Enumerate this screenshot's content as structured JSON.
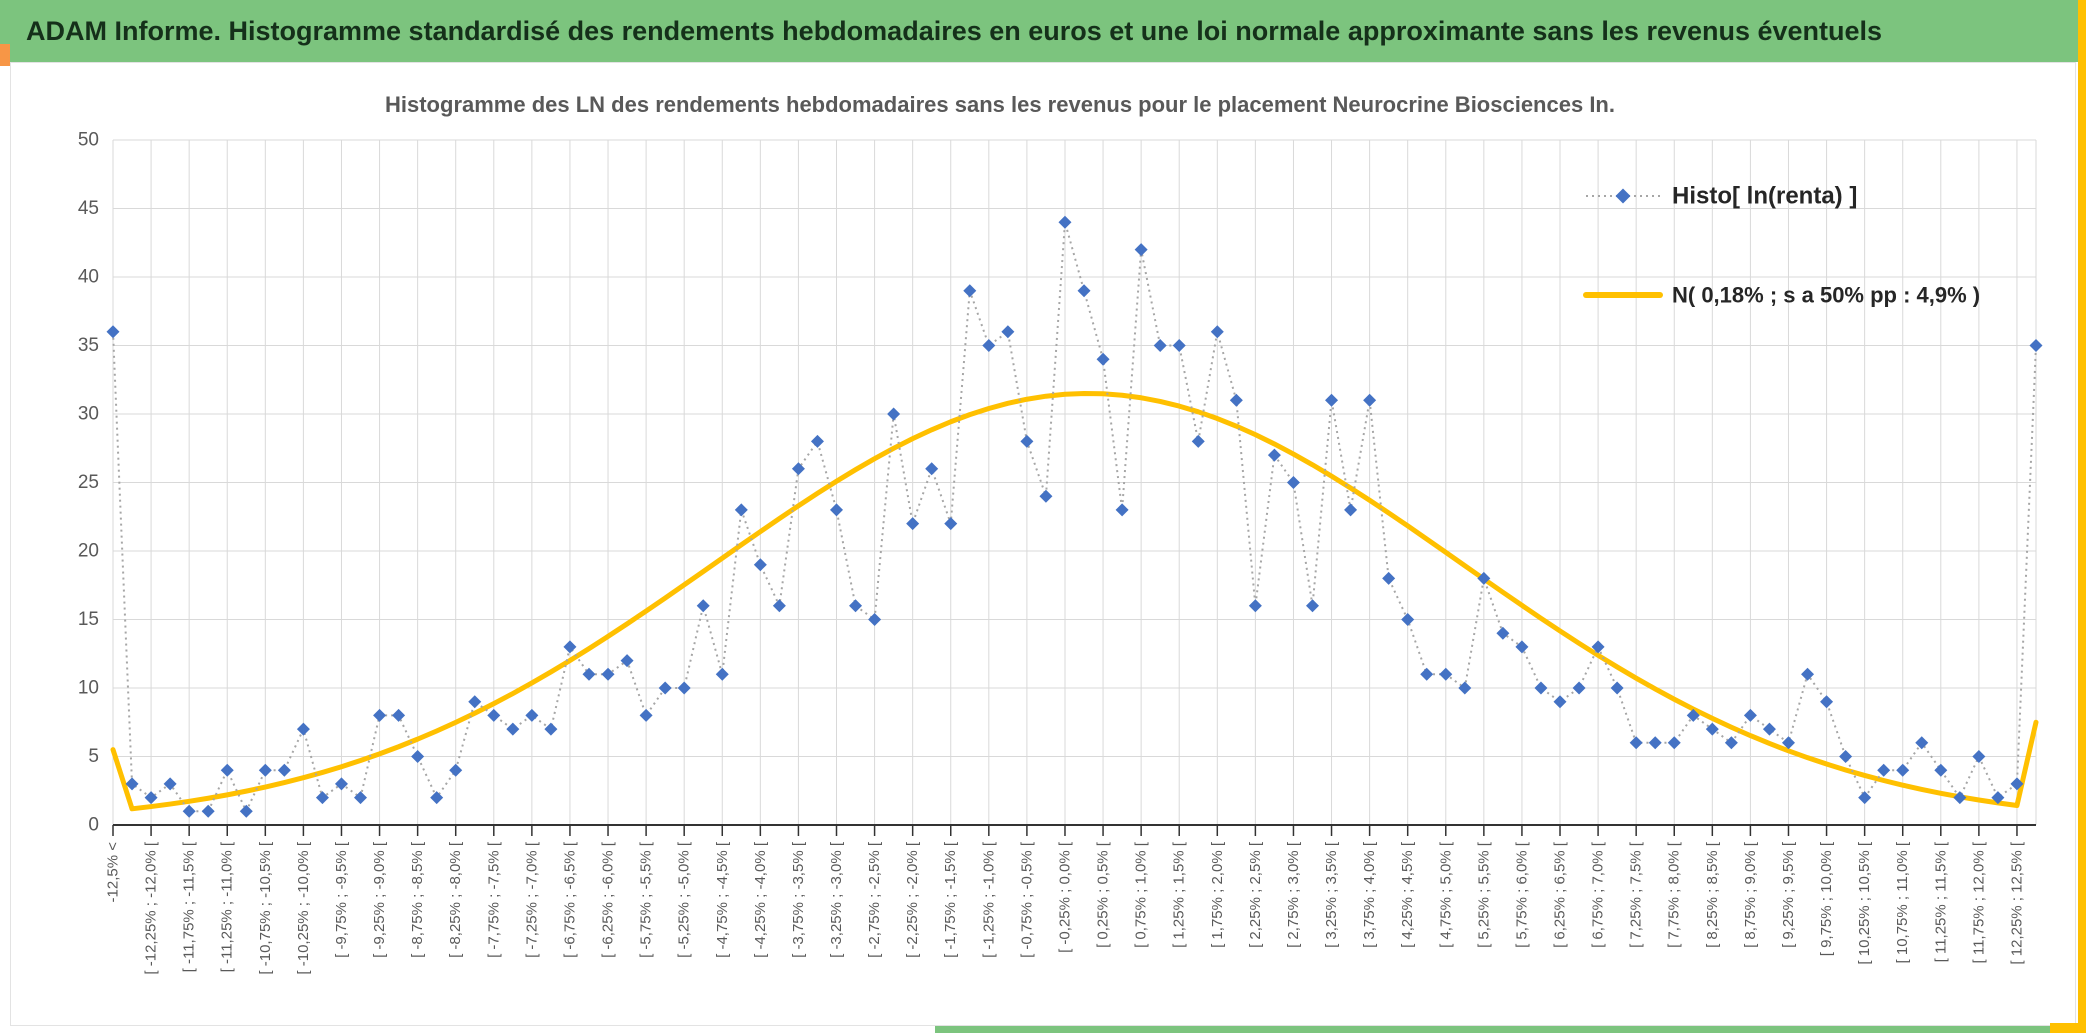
{
  "header": {
    "title": "ADAM Informe. Histogramme standardisé des rendements hebdomadaires en euros et une loi normale approximante sans les revenus éventuels"
  },
  "colors": {
    "header_green": "#7CC47E",
    "header_text": "#15301A",
    "accent_orange": "#F79646",
    "accent_gold": "#FFC000",
    "marker_blue": "#4472C4",
    "dotted_grey": "#A6A6A6",
    "grid_grey": "#D9D9D9",
    "axis_dark": "#333333",
    "text_grey": "#595959",
    "legend_text": "#262626"
  },
  "chart_data": {
    "type": "line",
    "title": "Histogramme des LN des rendements hebdomadaires sans les revenus pour le placement Neurocrine Biosciences In.",
    "xlabel": "",
    "ylabel": "",
    "ylim": [
      0,
      50
    ],
    "y_ticks": [
      0,
      5,
      10,
      15,
      20,
      25,
      30,
      35,
      40,
      45,
      50
    ],
    "grid": true,
    "legend_position": "top-right",
    "x_tick_bin_step": 2,
    "x_tick_labels": [
      "-12,5% <",
      "[ -12,25% ; -12,0% [",
      "[ -11,75% ; -11,5% [",
      "[ -11,25% ; -11,0% [",
      "[ -10,75% ; -10,5% [",
      "[ -10,25% ; -10,0% [",
      "[ -9,75% ; -9,5% [",
      "[ -9,25% ; -9,0% [",
      "[ -8,75% ; -8,5% [",
      "[ -8,25% ; -8,0% [",
      "[ -7,75% ; -7,5% [",
      "[ -7,25% ; -7,0% [",
      "[ -6,75% ; -6,5% [",
      "[ -6,25% ; -6,0% [",
      "[ -5,75% ; -5,5% [",
      "[ -5,25% ; -5,0% [",
      "[ -4,75% ; -4,5% [",
      "[ -4,25% ; -4,0% [",
      "[ -3,75% ; -3,5% [",
      "[ -3,25% ; -3,0% [",
      "[ -2,75% ; -2,5% [",
      "[ -2,25% ; -2,0% [",
      "[ -1,75% ; -1,5% [",
      "[ -1,25% ; -1,0% [",
      "[ -0,75% ; -0,5% [",
      "[ -0,25% ; 0,0% [",
      "[ 0,25% ; 0,5% [",
      "[ 0,75% ; 1,0% [",
      "[ 1,25% ; 1,5% [",
      "[ 1,75% ; 2,0% [",
      "[ 2,25% ; 2,5% [",
      "[ 2,75% ; 3,0% [",
      "[ 3,25% ; 3,5% [",
      "[ 3,75% ; 4,0% [",
      "[ 4,25% ; 4,5% [",
      "[ 4,75% ; 5,0% [",
      "[ 5,25% ; 5,5% [",
      "[ 5,75% ; 6,0% [",
      "[ 6,25% ; 6,5% [",
      "[ 6,75% ; 7,0% [",
      "[ 7,25% ; 7,5% [",
      "[ 7,75% ; 8,0% [",
      "[ 8,25% ; 8,5% [",
      "[ 8,75% ; 9,0% [",
      "[ 9,25% ; 9,5% [",
      "[ 9,75% ; 10,0% [",
      "[ 10,25% ; 10,5% [",
      "[ 10,75% ; 11,0% [",
      "[ 11,25% ; 11,5% [",
      "[ 11,75% ; 12,0% [",
      "[ 12,25% ; 12,5% ["
    ],
    "series": [
      {
        "name": "Histo[ ln(renta) ]",
        "style": "dotted-line-diamond-markers",
        "values": [
          36,
          3,
          2,
          3,
          1,
          1,
          4,
          1,
          4,
          4,
          7,
          2,
          3,
          2,
          8,
          8,
          5,
          2,
          4,
          9,
          8,
          7,
          8,
          7,
          13,
          11,
          11,
          12,
          8,
          10,
          10,
          16,
          11,
          23,
          19,
          16,
          26,
          28,
          23,
          16,
          15,
          30,
          22,
          26,
          22,
          39,
          35,
          36,
          28,
          24,
          44,
          39,
          34,
          23,
          42,
          35,
          35,
          28,
          36,
          31,
          16,
          27,
          25,
          16,
          31,
          23,
          31,
          18,
          15,
          11,
          11,
          10,
          18,
          14,
          13,
          10,
          9,
          10,
          13,
          10,
          6,
          6,
          6,
          8,
          7,
          6,
          8,
          7,
          6,
          11,
          9,
          5,
          2,
          4,
          4,
          6,
          4,
          2,
          5,
          2,
          3,
          35
        ]
      },
      {
        "name": "N( 0,18% ; s a 50% pp : 4,9% )",
        "style": "solid-thick-line",
        "model": {
          "mean_pct": 0.18,
          "sd_pct": 4.9,
          "peak_height": 31.5,
          "left_tail_height": 5.5,
          "right_tail_height": 7.5,
          "bin_width_pct": 0.25,
          "first_center_offset_pct": -12.625
        }
      }
    ]
  }
}
